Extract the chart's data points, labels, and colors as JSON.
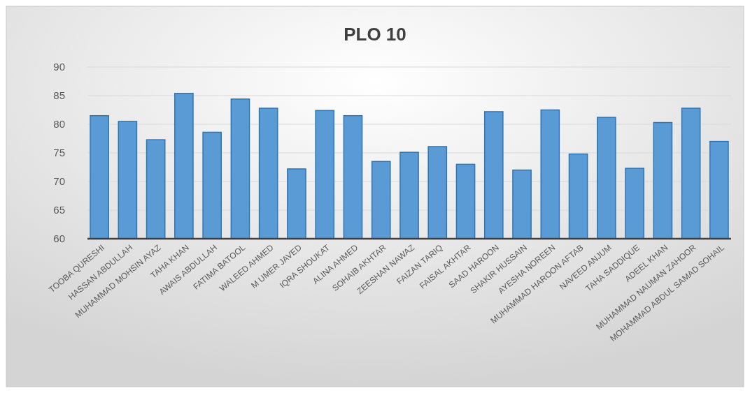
{
  "chart_data": {
    "type": "bar",
    "title": "PLO 10",
    "categories": [
      "TOOBA QURESHI",
      "HASSAN ABDULLAH",
      "MUHAMMAD MOHSIN AYAZ",
      "TAHA KHAN",
      "AWAIS ABDULLAH",
      "FATIMA BATOOL",
      "WALEED AHMED",
      "M UMER JAVED",
      "IQRA SHOUKAT",
      "ALINA AHMED",
      "SOHAIB AKHTAR",
      "ZEESHAN NAWAZ",
      "FAIZAN TARIQ",
      "FAISAL AKHTAR",
      "SAAD HAROON",
      "SHAKIR HUSSAIN",
      "AYESHA NOREEN",
      "MUHAMMAD HAROON AFTAB",
      "NAVEED ANJUM",
      "TAHA SADDIQUE",
      "ADEEL KHAN",
      "MUHAMMAD NAUMAN ZAHOOR",
      "MOHAMMAD ABDUL SAMAD SOHAIL"
    ],
    "values": [
      81.5,
      80.5,
      77.3,
      85.4,
      78.6,
      84.4,
      82.8,
      72.2,
      82.4,
      81.5,
      73.5,
      75.1,
      76.1,
      73.0,
      82.2,
      72.0,
      82.5,
      74.8,
      81.2,
      72.3,
      80.3,
      82.8,
      77.0
    ],
    "color": "#5b9bd5",
    "ylim": [
      60,
      90
    ],
    "yticks": [
      60,
      65,
      70,
      75,
      80,
      85,
      90
    ],
    "grid": "y"
  }
}
